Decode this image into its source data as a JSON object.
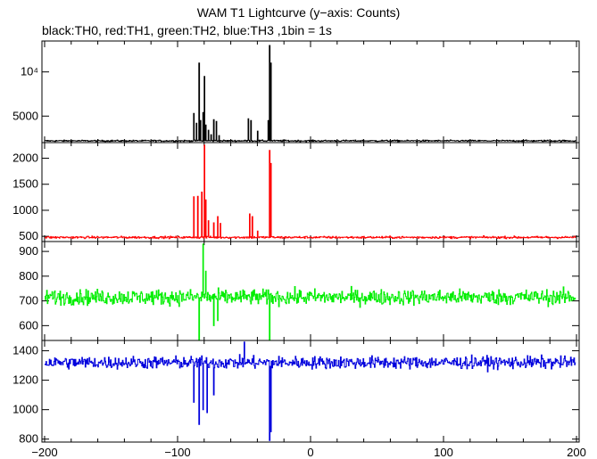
{
  "chart_data": {
    "type": "line",
    "title": "WAM T1 Lightcurve (y−axis: Counts)",
    "subtitle": "black:TH0, red:TH1, green:TH2, blue:TH3 ,1bin = 1s",
    "x_ticks": [
      -200,
      -100,
      0,
      100,
      200
    ],
    "xlim": [
      -202,
      202
    ],
    "panels": [
      {
        "name": "TH0",
        "color": "#000000",
        "ylim": [
          2000,
          13500
        ],
        "y_ticks": [
          {
            "value": 5000,
            "label": "5000"
          },
          {
            "value": 10000,
            "label": "10⁴"
          }
        ],
        "baseline": 2200,
        "noise": 60,
        "features": [
          {
            "x": -88,
            "y": 5300
          },
          {
            "x": -86,
            "y": 4200
          },
          {
            "x": -84,
            "y": 11000
          },
          {
            "x": -83,
            "y": 4500
          },
          {
            "x": -81,
            "y": 5400
          },
          {
            "x": -80,
            "y": 9500
          },
          {
            "x": -79,
            "y": 4000
          },
          {
            "x": -77,
            "y": 3400
          },
          {
            "x": -75,
            "y": 2900
          },
          {
            "x": -73,
            "y": 4600
          },
          {
            "x": -71,
            "y": 4400
          },
          {
            "x": -69,
            "y": 2800
          },
          {
            "x": -47,
            "y": 4700
          },
          {
            "x": -45,
            "y": 4500
          },
          {
            "x": -40,
            "y": 3300
          },
          {
            "x": -32,
            "y": 4500
          },
          {
            "x": -31,
            "y": 13000
          },
          {
            "x": -30,
            "y": 11000
          }
        ]
      },
      {
        "name": "TH1",
        "color": "#ff0000",
        "ylim": [
          400,
          2300
        ],
        "y_ticks": [
          {
            "value": 500,
            "label": "500"
          },
          {
            "value": 1000,
            "label": "1000"
          },
          {
            "value": 1500,
            "label": "1500"
          },
          {
            "value": 2000,
            "label": "2000"
          }
        ],
        "baseline": 480,
        "noise": 15,
        "features": [
          {
            "x": -88,
            "y": 1260
          },
          {
            "x": -85,
            "y": 1270
          },
          {
            "x": -82,
            "y": 1350
          },
          {
            "x": -80,
            "y": 2250
          },
          {
            "x": -79,
            "y": 1200
          },
          {
            "x": -77,
            "y": 800
          },
          {
            "x": -73,
            "y": 760
          },
          {
            "x": -70,
            "y": 880
          },
          {
            "x": -68,
            "y": 750
          },
          {
            "x": -46,
            "y": 930
          },
          {
            "x": -44,
            "y": 880
          },
          {
            "x": -40,
            "y": 600
          },
          {
            "x": -31,
            "y": 2150
          },
          {
            "x": -30,
            "y": 1900
          }
        ]
      },
      {
        "name": "TH2",
        "color": "#00ee00",
        "ylim": [
          540,
          940
        ],
        "y_ticks": [
          {
            "value": 600,
            "label": "600"
          },
          {
            "value": 700,
            "label": "700"
          },
          {
            "value": 800,
            "label": "800"
          },
          {
            "value": 900,
            "label": "900"
          }
        ],
        "baseline": 715,
        "noise": 22,
        "features": [
          {
            "x": -84,
            "y": 540
          },
          {
            "x": -81,
            "y": 930
          },
          {
            "x": -79,
            "y": 820
          },
          {
            "x": -73,
            "y": 600
          },
          {
            "x": -70,
            "y": 620
          },
          {
            "x": -31,
            "y": 540
          }
        ]
      },
      {
        "name": "TH3",
        "color": "#0000dd",
        "ylim": [
          780,
          1470
        ],
        "y_ticks": [
          {
            "value": 800,
            "label": "800"
          },
          {
            "value": 1000,
            "label": "1000"
          },
          {
            "value": 1200,
            "label": "1200"
          },
          {
            "value": 1400,
            "label": "1400"
          }
        ],
        "baseline": 1320,
        "noise": 30,
        "features": [
          {
            "x": -88,
            "y": 1050
          },
          {
            "x": -84,
            "y": 900
          },
          {
            "x": -81,
            "y": 1000
          },
          {
            "x": -78,
            "y": 980
          },
          {
            "x": -73,
            "y": 1100
          },
          {
            "x": -50,
            "y": 1460
          },
          {
            "x": -31,
            "y": 790
          },
          {
            "x": -30,
            "y": 850
          }
        ]
      }
    ]
  }
}
